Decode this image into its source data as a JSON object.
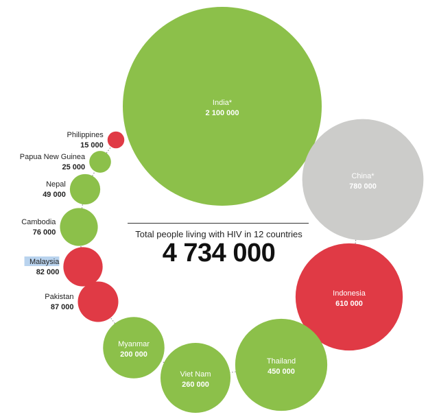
{
  "chart_data": {
    "type": "bubble",
    "caption": "Total people living with HIV in 12 countries",
    "total": "4 734 000",
    "colors": {
      "green": "#8cc04a",
      "red": "#e03a45",
      "grey": "#ccccca",
      "highlight": "#b9d3ee"
    },
    "series": [
      {
        "name": "India*",
        "value_label": "2 100 000",
        "value": 2100000,
        "color": "green",
        "label": "inside"
      },
      {
        "name": "China*",
        "value_label": "780 000",
        "value": 780000,
        "color": "grey",
        "label": "inside"
      },
      {
        "name": "Indonesia",
        "value_label": "610 000",
        "value": 610000,
        "color": "red",
        "label": "inside"
      },
      {
        "name": "Thailand",
        "value_label": "450 000",
        "value": 450000,
        "color": "green",
        "label": "inside"
      },
      {
        "name": "Viet Nam",
        "value_label": "260 000",
        "value": 260000,
        "color": "green",
        "label": "inside"
      },
      {
        "name": "Myanmar",
        "value_label": "200 000",
        "value": 200000,
        "color": "green",
        "label": "inside"
      },
      {
        "name": "Pakistan",
        "value_label": "87 000",
        "value": 87000,
        "color": "red",
        "label": "left"
      },
      {
        "name": "Malaysia",
        "value_label": "82 000",
        "value": 82000,
        "color": "red",
        "label": "left",
        "highlighted": true
      },
      {
        "name": "Cambodia",
        "value_label": "76 000",
        "value": 76000,
        "color": "green",
        "label": "left"
      },
      {
        "name": "Nepal",
        "value_label": "49 000",
        "value": 49000,
        "color": "green",
        "label": "left"
      },
      {
        "name": "Papua New Guinea",
        "value_label": "25 000",
        "value": 25000,
        "color": "green",
        "label": "left"
      },
      {
        "name": "Philippines",
        "value_label": "15 000",
        "value": 15000,
        "color": "red",
        "label": "left"
      }
    ]
  }
}
